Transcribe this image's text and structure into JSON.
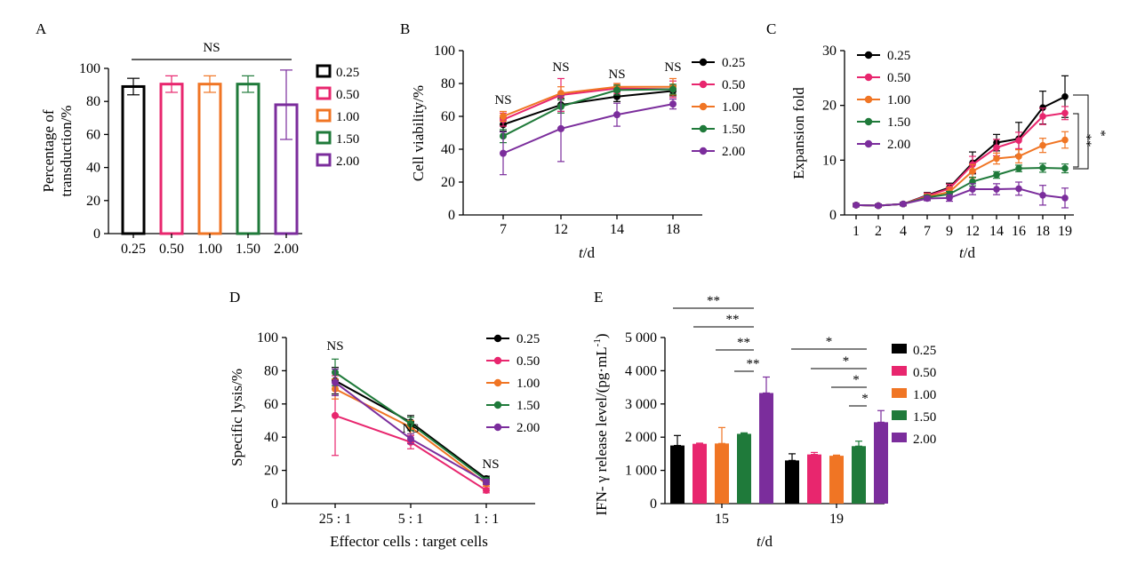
{
  "chart_data": [
    {
      "panel": "A",
      "type": "bar",
      "ylabel": "Percentage of transduction/%",
      "categories": [
        "0.25",
        "0.50",
        "1.00",
        "1.50",
        "2.00"
      ],
      "values": [
        89,
        90.5,
        90.5,
        90.5,
        78
      ],
      "errors": [
        5,
        5,
        5,
        5,
        21
      ],
      "colors": [
        "#000000",
        "#e8266e",
        "#f07524",
        "#1f7a3a",
        "#7b2d9c"
      ],
      "legend": [
        "0.25",
        "0.50",
        "1.00",
        "1.50",
        "2.00"
      ],
      "yticks": [
        "0",
        "20",
        "40",
        "60",
        "80",
        "100"
      ],
      "ylim": [
        0,
        100
      ],
      "annotation": "NS"
    },
    {
      "panel": "B",
      "type": "line",
      "ylabel": "Cell viability/%",
      "xlabel_italic": "t",
      "xlabel_rest": "/d",
      "x": [
        "7",
        "12",
        "14",
        "18"
      ],
      "ylim": [
        0,
        100
      ],
      "yticks": [
        "0",
        "20",
        "40",
        "60",
        "80",
        "100"
      ],
      "series": [
        {
          "name": "0.25",
          "color": "#000000",
          "values": [
            55,
            67,
            72,
            75.5
          ],
          "errors": [
            4,
            4,
            3,
            3
          ]
        },
        {
          "name": "0.50",
          "color": "#e8266e",
          "values": [
            58,
            73,
            77,
            76.5
          ],
          "errors": [
            4,
            10,
            3,
            5
          ]
        },
        {
          "name": "1.00",
          "color": "#f07524",
          "values": [
            60,
            74,
            78,
            78
          ],
          "errors": [
            3,
            4,
            2,
            5
          ]
        },
        {
          "name": "1.50",
          "color": "#1f7a3a",
          "values": [
            48,
            66,
            76,
            76.5
          ],
          "errors": [
            4,
            4,
            3,
            3
          ]
        },
        {
          "name": "2.00",
          "color": "#7b2d9c",
          "values": [
            37.5,
            52.5,
            61,
            67.5
          ],
          "errors": [
            13,
            20,
            7,
            3
          ]
        }
      ],
      "annotations": [
        "NS",
        "NS",
        "NS",
        "NS"
      ]
    },
    {
      "panel": "C",
      "type": "line",
      "ylabel": "Expansion fold",
      "xlabel_italic": "t",
      "xlabel_rest": "/d",
      "x": [
        "1",
        "2",
        "4",
        "7",
        "9",
        "12",
        "14",
        "16",
        "18",
        "19"
      ],
      "ylim": [
        0,
        30
      ],
      "yticks": [
        "0",
        "10",
        "20",
        "30"
      ],
      "series": [
        {
          "name": "0.25",
          "color": "#000000",
          "values": [
            1.8,
            1.7,
            2,
            3.6,
            5,
            9.5,
            13.2,
            13.9,
            19.6,
            21.6
          ],
          "errors": [
            0.3,
            0.3,
            0.3,
            0.5,
            0.8,
            2,
            1.5,
            3,
            3,
            3.8
          ]
        },
        {
          "name": "0.50",
          "color": "#e8266e",
          "values": [
            1.8,
            1.7,
            2,
            3.5,
            4.8,
            9.2,
            12.3,
            13.6,
            18,
            18.6
          ],
          "errors": [
            0.3,
            0.3,
            0.3,
            0.5,
            0.8,
            1.5,
            1.5,
            1.5,
            1.5,
            1.2
          ]
        },
        {
          "name": "1.00",
          "color": "#f07524",
          "values": [
            1.8,
            1.7,
            2,
            3.3,
            4.2,
            8,
            10.3,
            10.7,
            12.7,
            13.7
          ],
          "errors": [
            0.3,
            0.3,
            0.3,
            0.5,
            0.8,
            1.2,
            1,
            1.2,
            1.3,
            1.5
          ]
        },
        {
          "name": "1.50",
          "color": "#1f7a3a",
          "values": [
            1.8,
            1.7,
            2,
            3.2,
            3.8,
            6.1,
            7.3,
            8.5,
            8.6,
            8.5
          ],
          "errors": [
            0.3,
            0.3,
            0.3,
            0.4,
            0.5,
            0.8,
            0.6,
            0.6,
            0.8,
            0.8
          ]
        },
        {
          "name": "2.00",
          "color": "#7b2d9c",
          "values": [
            1.8,
            1.7,
            2,
            3,
            3.1,
            4.7,
            4.7,
            4.8,
            3.6,
            3.1
          ],
          "errors": [
            0.3,
            0.3,
            0.3,
            0.4,
            0.6,
            1,
            1,
            1.2,
            1.8,
            1.8
          ]
        }
      ],
      "significance": [
        "*",
        "**"
      ]
    },
    {
      "panel": "D",
      "type": "line",
      "ylabel": "Specific lysis/%",
      "xlabel": "Effector cells : target cells",
      "x": [
        "25 : 1",
        "5 : 1",
        "1 : 1"
      ],
      "ylim": [
        0,
        100
      ],
      "yticks": [
        "0",
        "20",
        "40",
        "60",
        "80",
        "100"
      ],
      "series": [
        {
          "name": "0.25",
          "color": "#000000",
          "values": [
            74,
            49,
            15
          ],
          "errors": [
            8,
            4,
            1.5
          ]
        },
        {
          "name": "0.50",
          "color": "#e8266e",
          "values": [
            53,
            37,
            8
          ],
          "errors": [
            24,
            4,
            1.5
          ]
        },
        {
          "name": "1.00",
          "color": "#f07524",
          "values": [
            69,
            46,
            12
          ],
          "errors": [
            6,
            4,
            1.5
          ]
        },
        {
          "name": "1.50",
          "color": "#1f7a3a",
          "values": [
            79,
            48,
            14
          ],
          "errors": [
            8,
            4,
            1.5
          ]
        },
        {
          "name": "2.00",
          "color": "#7b2d9c",
          "values": [
            73,
            39,
            13
          ],
          "errors": [
            8,
            3,
            1.5
          ]
        }
      ],
      "annotations": [
        "NS",
        "NS",
        "NS"
      ]
    },
    {
      "panel": "E",
      "type": "bar",
      "ylabel": "IFN- γ release level/(pg·mL",
      "ylabel_sup": "-1",
      "ylabel_end": ")",
      "xlabel_italic": "t",
      "xlabel_rest": "/d",
      "categories": [
        "15",
        "19"
      ],
      "ylim": [
        0,
        5000
      ],
      "yticks": [
        "0",
        "1 000",
        "2 000",
        "3 000",
        "4 000",
        "5 000"
      ],
      "series": [
        {
          "name": "0.25",
          "color": "#000000",
          "values": [
            1750,
            1300
          ],
          "errors": [
            300,
            200
          ]
        },
        {
          "name": "0.50",
          "color": "#e8266e",
          "values": [
            1800,
            1480
          ],
          "errors": [
            20,
            60
          ]
        },
        {
          "name": "1.00",
          "color": "#f07524",
          "values": [
            1810,
            1440
          ],
          "errors": [
            480,
            20
          ]
        },
        {
          "name": "1.50",
          "color": "#1f7a3a",
          "values": [
            2100,
            1730
          ],
          "errors": [
            30,
            150
          ]
        },
        {
          "name": "2.00",
          "color": "#7b2d9c",
          "values": [
            3330,
            2450
          ],
          "errors": [
            480,
            350
          ]
        }
      ],
      "significance_15": [
        "**",
        "**",
        "**",
        "**"
      ],
      "significance_19": [
        "*",
        "*",
        "*",
        "*"
      ]
    }
  ]
}
